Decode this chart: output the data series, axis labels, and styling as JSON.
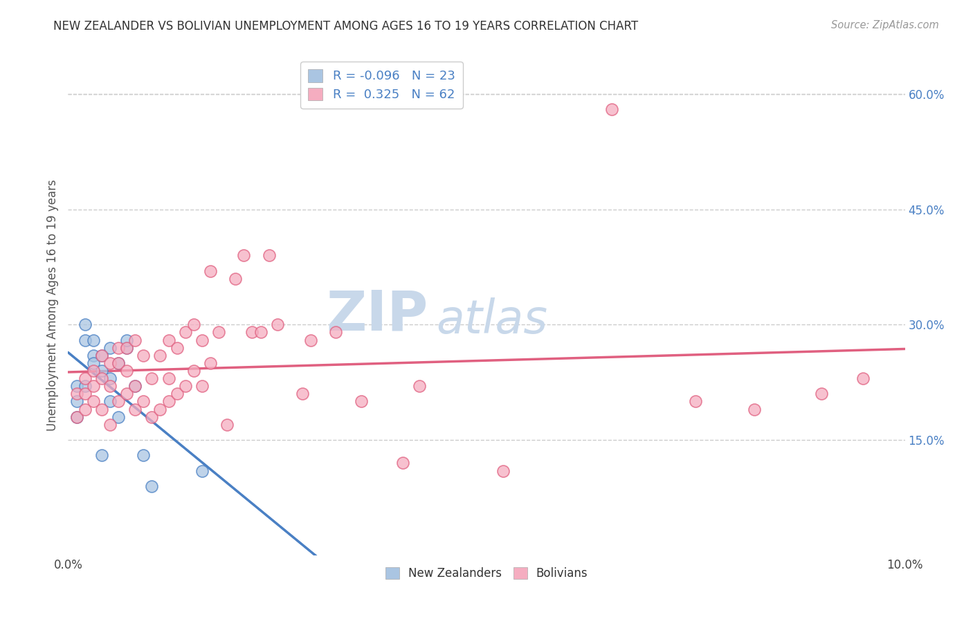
{
  "title": "NEW ZEALANDER VS BOLIVIAN UNEMPLOYMENT AMONG AGES 16 TO 19 YEARS CORRELATION CHART",
  "source": "Source: ZipAtlas.com",
  "ylabel": "Unemployment Among Ages 16 to 19 years",
  "xlim": [
    0.0,
    0.1
  ],
  "ylim": [
    0.0,
    0.65
  ],
  "nz_R": "-0.096",
  "nz_N": "23",
  "bo_R": "0.325",
  "bo_N": "62",
  "nz_color": "#aac5e2",
  "bo_color": "#f5adc0",
  "nz_line_color": "#4a80c4",
  "bo_line_color": "#e06080",
  "nz_x": [
    0.001,
    0.001,
    0.001,
    0.002,
    0.002,
    0.002,
    0.003,
    0.003,
    0.003,
    0.004,
    0.004,
    0.004,
    0.005,
    0.005,
    0.005,
    0.006,
    0.006,
    0.007,
    0.007,
    0.008,
    0.009,
    0.01,
    0.016
  ],
  "nz_y": [
    0.22,
    0.2,
    0.18,
    0.3,
    0.28,
    0.22,
    0.28,
    0.26,
    0.25,
    0.24,
    0.26,
    0.13,
    0.27,
    0.2,
    0.23,
    0.25,
    0.18,
    0.27,
    0.28,
    0.22,
    0.13,
    0.09,
    0.11
  ],
  "bo_x": [
    0.001,
    0.001,
    0.002,
    0.002,
    0.002,
    0.003,
    0.003,
    0.003,
    0.004,
    0.004,
    0.004,
    0.005,
    0.005,
    0.005,
    0.006,
    0.006,
    0.006,
    0.007,
    0.007,
    0.007,
    0.008,
    0.008,
    0.008,
    0.009,
    0.009,
    0.01,
    0.01,
    0.011,
    0.011,
    0.012,
    0.012,
    0.012,
    0.013,
    0.013,
    0.014,
    0.014,
    0.015,
    0.015,
    0.016,
    0.016,
    0.017,
    0.017,
    0.018,
    0.019,
    0.02,
    0.021,
    0.022,
    0.023,
    0.024,
    0.025,
    0.028,
    0.029,
    0.032,
    0.035,
    0.04,
    0.042,
    0.052,
    0.065,
    0.075,
    0.082,
    0.09,
    0.095
  ],
  "bo_y": [
    0.21,
    0.18,
    0.21,
    0.19,
    0.23,
    0.2,
    0.22,
    0.24,
    0.19,
    0.23,
    0.26,
    0.17,
    0.22,
    0.25,
    0.2,
    0.25,
    0.27,
    0.21,
    0.24,
    0.27,
    0.19,
    0.22,
    0.28,
    0.2,
    0.26,
    0.18,
    0.23,
    0.19,
    0.26,
    0.2,
    0.28,
    0.23,
    0.27,
    0.21,
    0.29,
    0.22,
    0.3,
    0.24,
    0.28,
    0.22,
    0.37,
    0.25,
    0.29,
    0.17,
    0.36,
    0.39,
    0.29,
    0.29,
    0.39,
    0.3,
    0.21,
    0.28,
    0.29,
    0.2,
    0.12,
    0.22,
    0.11,
    0.58,
    0.2,
    0.19,
    0.21,
    0.23
  ],
  "background_color": "#ffffff",
  "grid_color": "#cccccc",
  "watermark_zip": "ZIP",
  "watermark_atlas": "atlas",
  "watermark_color_zip": "#c8d8ea",
  "watermark_color_atlas": "#c8d8ea"
}
